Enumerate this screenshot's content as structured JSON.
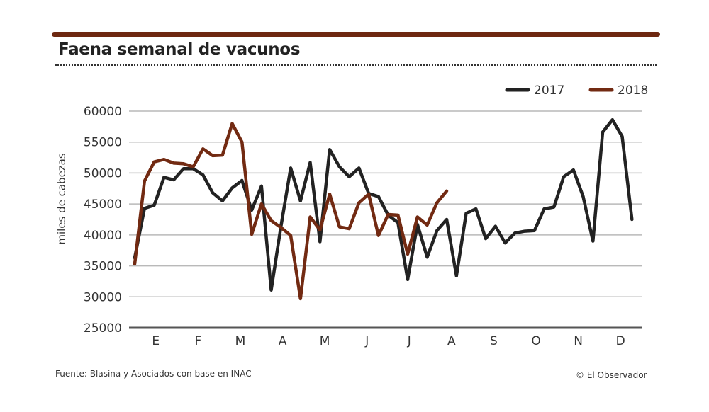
{
  "title": "Faena semanal de vacunos",
  "source": "Fuente: Blasina y Asociados con base en INAC",
  "credit": "© El Observador",
  "colors": {
    "rule": "#6e2811",
    "s2017": "#222222",
    "s2018": "#722a12",
    "grid": "#b9b9b9",
    "axis": "#555555"
  },
  "chart_data": {
    "type": "line",
    "title": "Faena semanal de vacunos",
    "xlabel": "",
    "ylabel": "miles de cabezas",
    "ylim": [
      25000,
      60000
    ],
    "yticks": [
      60000,
      55000,
      50000,
      45000,
      40000,
      35000,
      30000,
      25000
    ],
    "ytick_labels": [
      "60000",
      "55000",
      "50000",
      "45000",
      "40000",
      "35000",
      "30000",
      "25000"
    ],
    "month_labels": [
      "E",
      "F",
      "M",
      "A",
      "M",
      "J",
      "J",
      "A",
      "S",
      "O",
      "N",
      "D"
    ],
    "weeks": 53,
    "legend_position": "top-right",
    "series": [
      {
        "name": "2017",
        "values": [
          36300,
          44300,
          44800,
          49300,
          48900,
          50700,
          50700,
          49700,
          46800,
          45500,
          47600,
          48800,
          44000,
          47900,
          31100,
          41400,
          50800,
          45500,
          51700,
          38900,
          53800,
          51000,
          49400,
          50800,
          46700,
          46200,
          43200,
          42000,
          32800,
          41700,
          36400,
          40700,
          42500,
          33400,
          43500,
          44200,
          39400,
          41400,
          38700,
          40300,
          40600,
          40700,
          44200,
          44500,
          49400,
          50500,
          46200,
          39000,
          56600,
          58600,
          55900,
          42500
        ]
      },
      {
        "name": "2018",
        "values": [
          35300,
          48700,
          51800,
          52200,
          51600,
          51500,
          51000,
          53900,
          52800,
          52900,
          58000,
          55000,
          40100,
          45000,
          42300,
          41200,
          39900,
          29700,
          42900,
          40800,
          46600,
          41300,
          41000,
          45200,
          46600,
          39900,
          43300,
          43200,
          36900,
          42900,
          41600,
          45200,
          47100
        ]
      }
    ]
  }
}
